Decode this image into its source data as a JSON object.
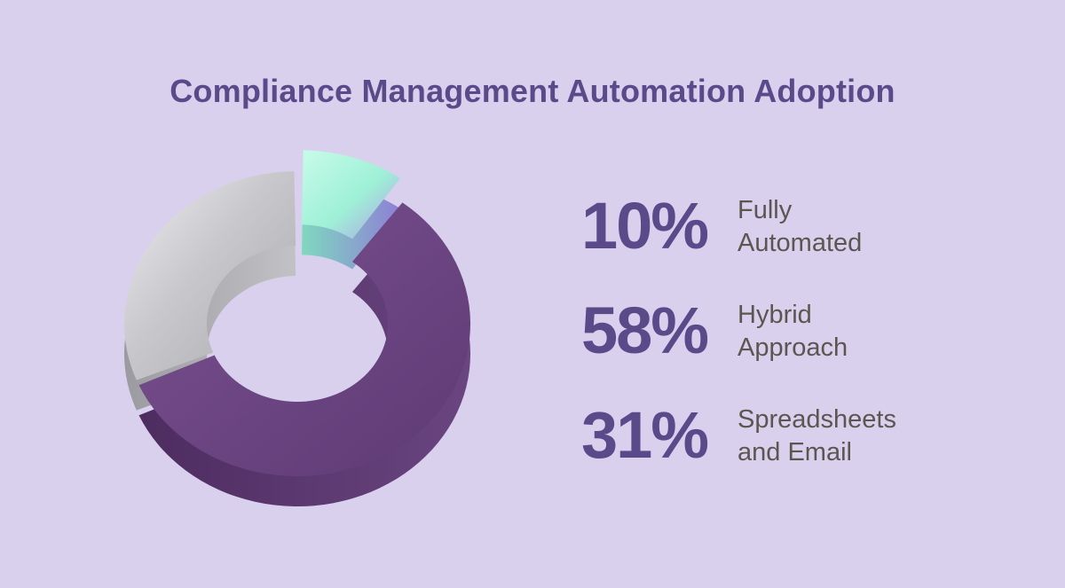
{
  "colors": {
    "background": "#d9d0ee",
    "title": "#5b4a8a",
    "label": "#5c5650",
    "slice_automated": "#9ef0d6",
    "slice_hybrid": "#6a4580",
    "slice_spreadsheets": "#c9c9cd"
  },
  "chart_data": {
    "type": "pie",
    "title": "Compliance Management Automation Adoption",
    "categories": [
      "Fully Automated",
      "Hybrid Approach",
      "Spreadsheets and Email"
    ],
    "values": [
      10,
      58,
      31
    ],
    "unit": "%",
    "legend": "right"
  },
  "legend": [
    {
      "pct": "10%",
      "line1": "Fully",
      "line2": "Automated"
    },
    {
      "pct": "58%",
      "line1": "Hybrid",
      "line2": "Approach"
    },
    {
      "pct": "31%",
      "line1": "Spreadsheets",
      "line2": "and Email"
    }
  ]
}
